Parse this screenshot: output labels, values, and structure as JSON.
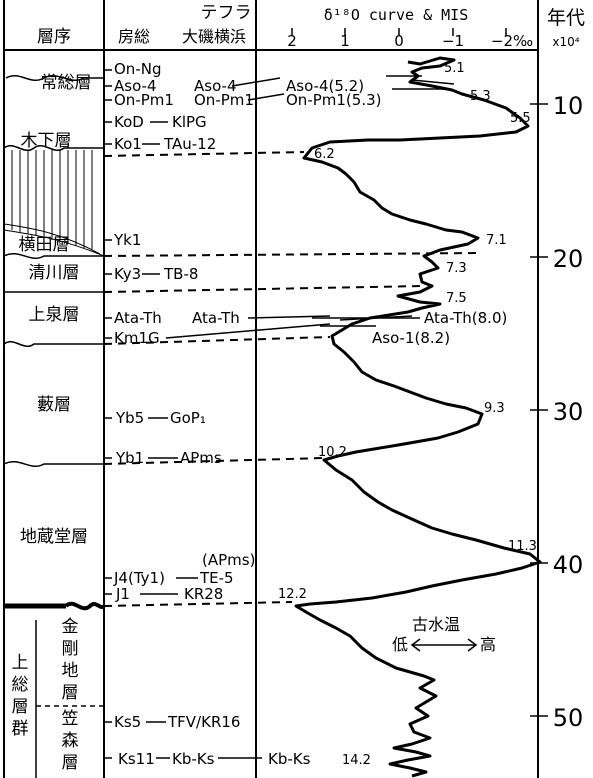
{
  "header": {
    "stratum": "層序",
    "tephra": "テフラ",
    "boso": "房総",
    "oiso": "大磯横浜",
    "curve_title": "δ¹⁸O curve & MIS",
    "age_title": "年代",
    "age_unit": "x10⁴"
  },
  "top_ticks": [
    "2",
    "1",
    "0",
    "−1",
    "−2‰"
  ],
  "ages": [
    "10",
    "20",
    "30",
    "40",
    "50"
  ],
  "strata": {
    "joso": "常総層",
    "kishita": "木下層",
    "yokota": "横田層",
    "kiyokawa": "清川層",
    "kamiizumi": "上泉層",
    "yabu": "藪層",
    "jizodo": "地蔵堂層",
    "kazusa": [
      "上",
      "総",
      "層",
      "群"
    ],
    "kongochi": [
      "金",
      "剛",
      "地",
      "層"
    ],
    "kasamori": [
      "笠",
      "森",
      "層"
    ]
  },
  "tephra_rows": [
    {
      "boso": "On-Ng",
      "oiso": ""
    },
    {
      "boso": "Aso-4",
      "oiso": "Aso-4"
    },
    {
      "boso": "On-Pm1",
      "oiso": "On-Pm1"
    },
    {
      "boso": "KoD",
      "oiso": "KlPG"
    },
    {
      "boso": "Ko1",
      "oiso": "TAu-12"
    },
    {
      "boso": "Yk1",
      "oiso": ""
    },
    {
      "boso": "Ky3",
      "oiso": "TB-8"
    },
    {
      "boso": "Ata-Th",
      "oiso": "Ata-Th"
    },
    {
      "boso": "Km1G",
      "oiso": ""
    },
    {
      "boso": "Yb5",
      "oiso": "GoP₁"
    },
    {
      "boso": "Yb1",
      "oiso": "APms"
    },
    {
      "boso": "J4(Ty1)",
      "oiso": "TE-5",
      "oiso_note": "(APms)"
    },
    {
      "boso": "J1",
      "oiso": "KR28"
    },
    {
      "boso": "Ks5",
      "oiso": "TFV/KR16"
    },
    {
      "boso": "Ks11",
      "oiso": "Kb-Ks"
    }
  ],
  "curve_labels": {
    "aso4": "Aso-4(5.2)",
    "onpm1": "On-Pm1(5.3)",
    "atath": "Ata-Th(8.0)",
    "aso1": "Aso-1(8.2)",
    "kbks": "Kb-Ks"
  },
  "mis_labels": [
    "5.1",
    "5.3",
    "5.5",
    "6.2",
    "7.1",
    "7.3",
    "7.5",
    "9.3",
    "10.2",
    "11.3",
    "12.2",
    "14.2"
  ],
  "paleotemp": {
    "title": "古水温",
    "low": "低",
    "high": "高"
  }
}
